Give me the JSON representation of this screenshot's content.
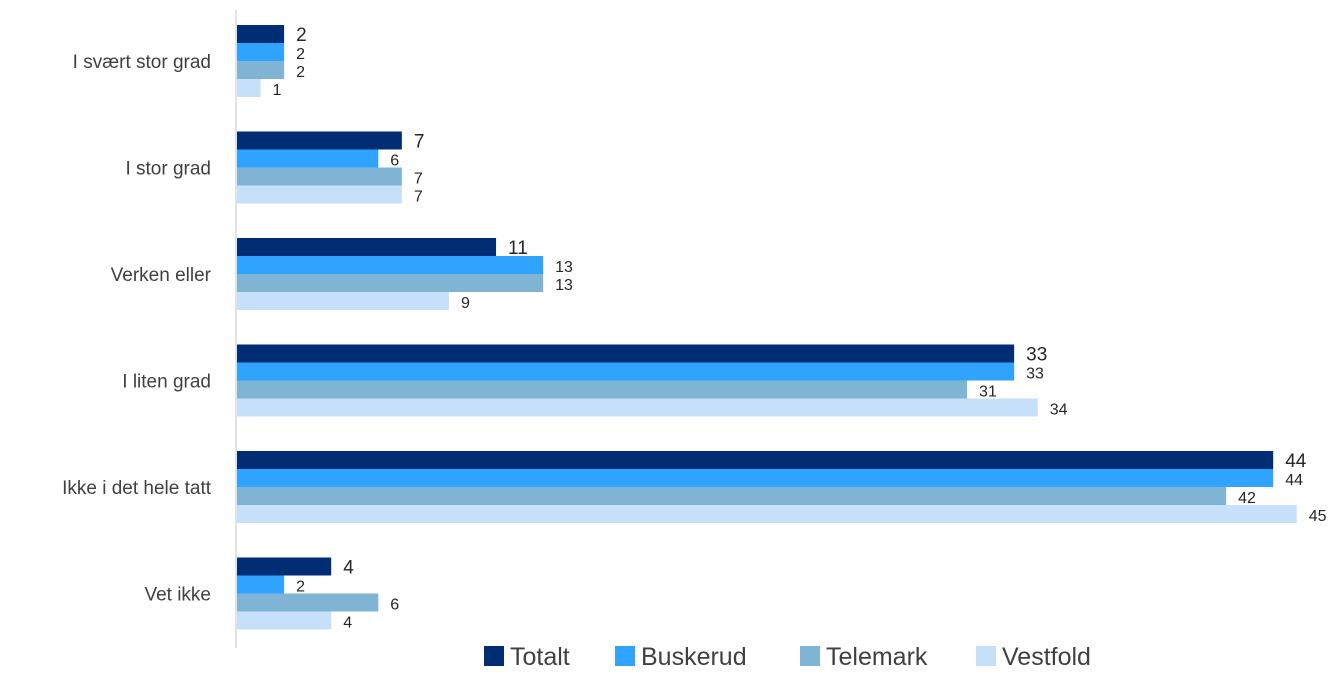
{
  "chart_data": {
    "type": "bar",
    "orientation": "horizontal",
    "categories": [
      "I svært stor grad",
      "I stor grad",
      "Verken eller",
      "I liten grad",
      "Ikke i det hele tatt",
      "Vet ikke"
    ],
    "series": [
      {
        "name": "Totalt",
        "color": "#002D74",
        "values": [
          2,
          7,
          11,
          33,
          44,
          4
        ]
      },
      {
        "name": "Buskerud",
        "color": "#30A3FF",
        "values": [
          2,
          6,
          13,
          33,
          44,
          2
        ]
      },
      {
        "name": "Telemark",
        "color": "#7FB4D5",
        "values": [
          2,
          7,
          13,
          31,
          42,
          6
        ]
      },
      {
        "name": "Vestfold",
        "color": "#C5E0F8",
        "values": [
          1,
          7,
          9,
          34,
          45,
          4
        ]
      }
    ],
    "xlim": [
      0,
      45
    ],
    "grid": false,
    "legend_position": "bottom"
  }
}
